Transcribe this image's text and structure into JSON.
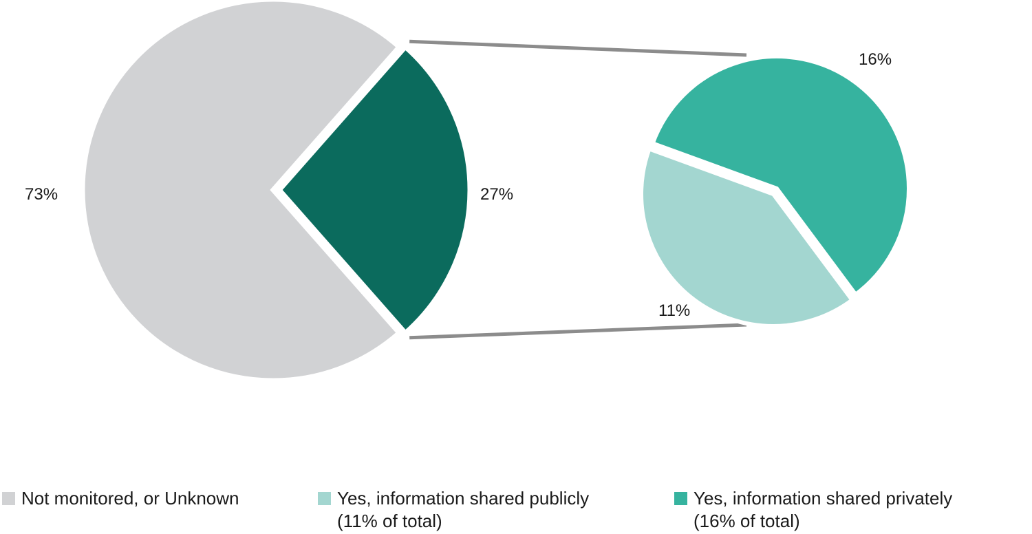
{
  "chart_data": {
    "type": "pie",
    "main_pie": {
      "slices": [
        {
          "name": "Not monitored, or Unknown",
          "value": 73,
          "label": "73%",
          "color": "#d1d2d4"
        },
        {
          "name": "Yes",
          "value": 27,
          "label": "27%",
          "color": "#0b6b5d"
        }
      ]
    },
    "breakdown_pie": {
      "slices": [
        {
          "name": "Yes, information shared privately",
          "value": 16,
          "label": "16%",
          "color": "#36b39f"
        },
        {
          "name": "Yes, information shared publicly",
          "value": 11,
          "label": "11%",
          "color": "#a3d6d0"
        }
      ]
    },
    "connector_color": "#8c8c8c",
    "legend": [
      {
        "swatch": "#d1d2d4",
        "line1": "Not monitored, or Unknown",
        "line2": ""
      },
      {
        "swatch": "#a3d6d0",
        "line1": "Yes, information shared publicly",
        "line2": "(11% of total)"
      },
      {
        "swatch": "#36b39f",
        "line1": "Yes, information shared privately",
        "line2": "(16% of total)"
      }
    ]
  }
}
